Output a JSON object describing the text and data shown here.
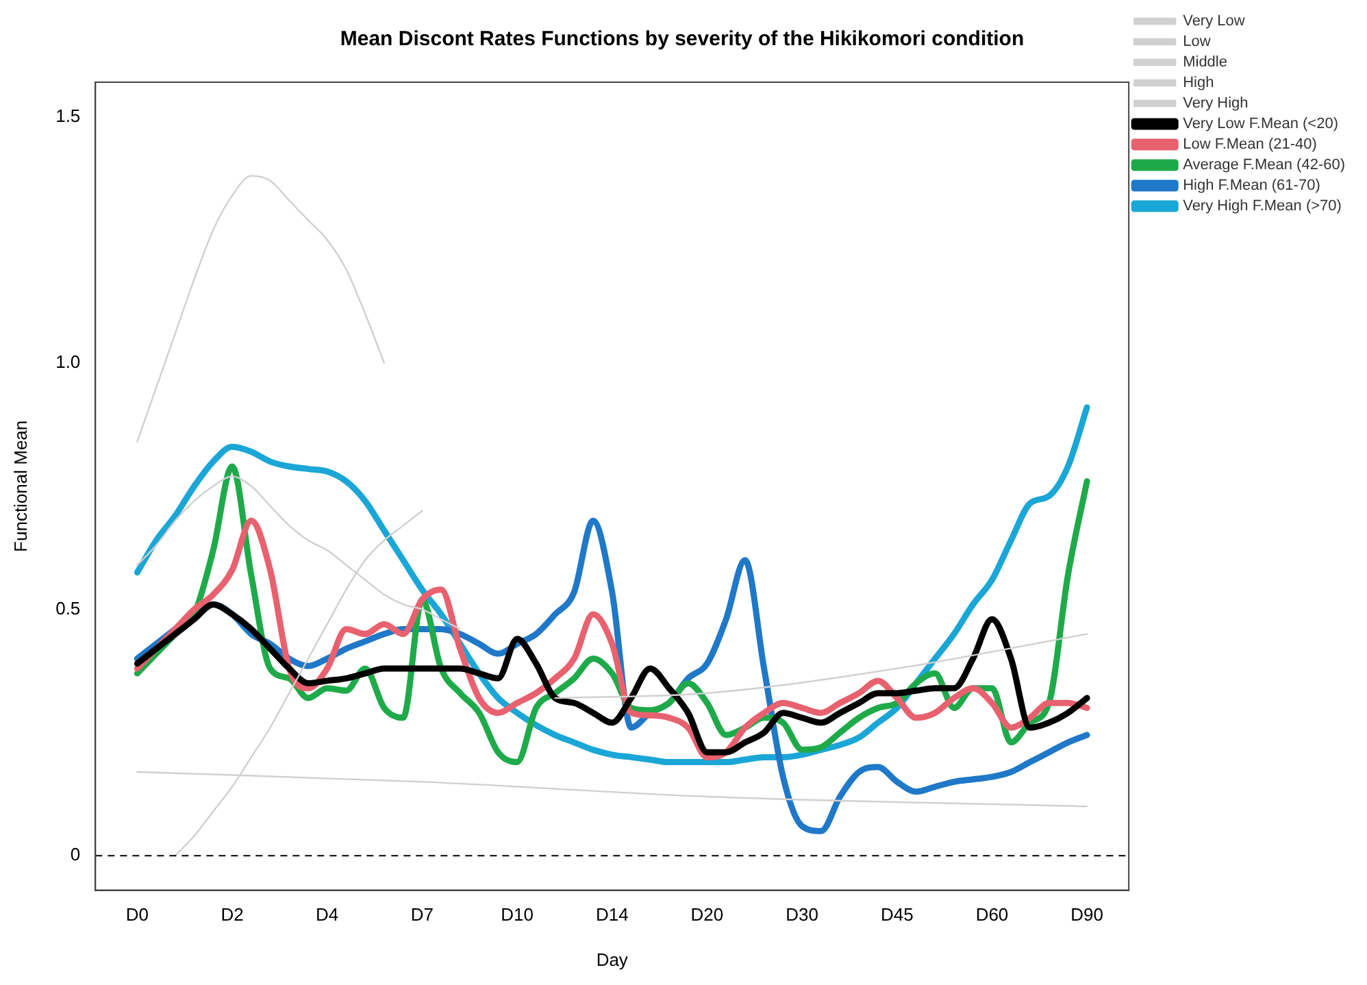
{
  "chart_data": {
    "type": "line",
    "title": "Mean Discont Rates Functions by severity of the Hikikomori condition",
    "xlabel": "Day",
    "ylabel": "Functional Mean",
    "categories": [
      "D0",
      null,
      null,
      null,
      null,
      "D2",
      null,
      null,
      null,
      null,
      "D4",
      null,
      null,
      null,
      null,
      "D7",
      null,
      null,
      null,
      null,
      "D10",
      null,
      null,
      null,
      null,
      "D14",
      null,
      null,
      null,
      null,
      "D20",
      null,
      null,
      null,
      null,
      "D30",
      null,
      null,
      null,
      null,
      "D45",
      null,
      null,
      null,
      null,
      "D60",
      null,
      null,
      null,
      null,
      "D90"
    ],
    "ylim": [
      -0.07,
      1.57
    ],
    "yticks": [
      0,
      {
        "value": 0.5,
        "label": "0.5"
      },
      {
        "value": 1,
        "label": "1.0"
      },
      {
        "value": 1.5,
        "label": "1.5"
      }
    ],
    "grid": false,
    "legend": "top right",
    "marker": "none",
    "ref_lines": [
      {
        "axis": "y",
        "value": 0,
        "label": null,
        "color": "#000000",
        "line_style": "dashed"
      }
    ],
    "series": [
      {
        "name": "Very Low",
        "color": "#d0d0d0",
        "values": [
          0.84,
          0.95,
          1.06,
          1.17,
          1.27,
          1.34,
          1.38,
          1.37,
          1.33,
          1.29,
          1.25,
          1.19,
          1.1,
          1.0,
          null,
          null,
          null,
          null,
          null,
          null,
          null,
          null,
          null,
          null,
          null,
          null,
          null,
          null,
          null,
          null,
          null,
          null,
          null,
          null,
          null,
          null,
          null,
          null,
          null,
          null,
          null,
          null,
          null,
          null,
          null,
          null,
          null,
          null,
          null,
          null,
          null
        ]
      },
      {
        "name": "Low",
        "color": "#d0d0d0",
        "values": [
          0.59,
          0.63,
          0.68,
          0.72,
          0.75,
          0.77,
          0.75,
          0.71,
          0.67,
          0.64,
          0.62,
          0.59,
          0.56,
          0.53,
          0.51,
          0.5,
          0.48,
          0.46,
          null,
          null,
          null,
          null,
          null,
          null,
          null,
          null,
          null,
          null,
          null,
          null,
          null,
          null,
          null,
          null,
          null,
          null,
          null,
          null,
          null,
          null,
          null,
          null,
          null,
          null,
          null,
          null,
          null,
          null,
          null,
          null,
          null
        ]
      },
      {
        "name": "Middle",
        "color": "#d0d0d0",
        "values": [
          null,
          null,
          0,
          0.04,
          0.09,
          0.14,
          0.2,
          0.26,
          0.33,
          0.4,
          0.47,
          0.54,
          0.6,
          0.64,
          0.67,
          0.7,
          null,
          null,
          null,
          null,
          null,
          null,
          null,
          null,
          null,
          null,
          null,
          null,
          null,
          null,
          null,
          null,
          null,
          null,
          null,
          null,
          null,
          null,
          null,
          null,
          null,
          null,
          null,
          null,
          null,
          null,
          null,
          null,
          null,
          null,
          null
        ]
      },
      {
        "name": "High",
        "color": "#d0d0d0",
        "values": [
          null,
          null,
          null,
          null,
          null,
          null,
          null,
          null,
          null,
          null,
          null,
          null,
          null,
          null,
          null,
          null,
          null,
          null,
          null,
          null,
          null,
          null,
          0.32,
          null,
          null,
          null,
          null,
          null,
          null,
          null,
          0.33,
          null,
          null,
          null,
          null,
          null,
          null,
          null,
          null,
          null,
          0.38,
          null,
          null,
          null,
          null,
          null,
          null,
          null,
          null,
          null,
          0.45
        ]
      },
      {
        "name": "Very High",
        "color": "#d0d0d0",
        "values": [
          0.17,
          null,
          null,
          null,
          null,
          null,
          null,
          null,
          null,
          null,
          null,
          null,
          null,
          null,
          null,
          0.15,
          null,
          null,
          null,
          null,
          null,
          null,
          null,
          null,
          null,
          null,
          null,
          null,
          null,
          null,
          0.12,
          null,
          null,
          null,
          null,
          null,
          null,
          null,
          null,
          null,
          null,
          null,
          null,
          null,
          null,
          null,
          null,
          null,
          null,
          null,
          0.1
        ]
      },
      {
        "name": "Very Low F.Mean (<20)",
        "color": "#000000",
        "values": [
          0.39,
          0.42,
          0.45,
          0.48,
          0.51,
          0.49,
          0.46,
          0.42,
          0.38,
          0.35,
          0.355,
          0.36,
          0.37,
          0.38,
          0.38,
          0.38,
          0.38,
          0.38,
          0.37,
          0.36,
          0.44,
          0.39,
          0.32,
          0.31,
          0.29,
          0.27,
          0.32,
          0.38,
          0.34,
          0.29,
          0.21,
          0.21,
          0.23,
          0.25,
          0.29,
          0.28,
          0.27,
          0.29,
          0.31,
          0.33,
          0.33,
          0.335,
          0.34,
          0.34,
          0.4,
          0.48,
          0.4,
          0.26,
          0.27,
          0.29,
          0.32
        ]
      },
      {
        "name": "Low F.Mean (21-40)",
        "color": "#e8616f",
        "values": [
          0.38,
          0.42,
          0.46,
          0.5,
          0.53,
          0.58,
          0.68,
          0.58,
          0.38,
          0.34,
          0.38,
          0.46,
          0.45,
          0.47,
          0.45,
          0.52,
          0.54,
          0.42,
          0.32,
          0.29,
          0.31,
          0.33,
          0.36,
          0.4,
          0.49,
          0.43,
          0.29,
          0.285,
          0.28,
          0.26,
          0.2,
          0.21,
          0.26,
          0.29,
          0.31,
          0.3,
          0.29,
          0.31,
          0.33,
          0.355,
          0.32,
          0.28,
          0.29,
          0.32,
          0.34,
          0.31,
          0.26,
          0.28,
          0.31,
          0.31,
          0.3
        ]
      },
      {
        "name": "Average F.Mean (42-60)",
        "color": "#1faa4a",
        "values": [
          0.37,
          0.41,
          0.45,
          0.49,
          0.62,
          0.79,
          0.57,
          0.38,
          0.36,
          0.32,
          0.34,
          0.335,
          0.38,
          0.3,
          0.28,
          0.52,
          0.38,
          0.33,
          0.29,
          0.21,
          0.19,
          0.3,
          0.33,
          0.36,
          0.4,
          0.37,
          0.3,
          0.295,
          0.31,
          0.35,
          0.31,
          0.245,
          0.26,
          0.28,
          0.27,
          0.215,
          0.22,
          0.25,
          0.28,
          0.3,
          0.31,
          0.35,
          0.37,
          0.3,
          0.34,
          0.34,
          0.23,
          0.27,
          0.31,
          0.57,
          0.76
        ]
      },
      {
        "name": "High F.Mean (61-70)",
        "color": "#1f78c8",
        "values": [
          0.4,
          0.43,
          0.46,
          0.49,
          0.51,
          0.49,
          0.45,
          0.43,
          0.4,
          0.385,
          0.4,
          0.42,
          0.435,
          0.45,
          0.46,
          0.46,
          0.46,
          0.45,
          0.43,
          0.41,
          0.43,
          0.45,
          0.49,
          0.535,
          0.68,
          0.535,
          0.26,
          0.29,
          0.31,
          0.36,
          0.39,
          0.48,
          0.6,
          0.38,
          0.16,
          0.06,
          0.05,
          0.12,
          0.17,
          0.18,
          0.15,
          0.13,
          0.14,
          0.15,
          0.155,
          0.16,
          0.17,
          0.19,
          0.21,
          0.23,
          0.245
        ]
      },
      {
        "name": "Very High F.Mean (>70)",
        "color": "#1aa6d6",
        "values": [
          0.575,
          0.64,
          0.69,
          0.75,
          0.8,
          0.83,
          0.82,
          0.8,
          0.79,
          0.785,
          0.78,
          0.76,
          0.72,
          0.66,
          0.6,
          0.54,
          0.49,
          0.43,
          0.37,
          0.32,
          0.29,
          0.265,
          0.245,
          0.23,
          0.215,
          0.205,
          0.2,
          0.195,
          0.19,
          0.19,
          0.19,
          0.19,
          0.195,
          0.2,
          0.2,
          0.205,
          0.215,
          0.225,
          0.24,
          0.27,
          0.3,
          0.35,
          0.4,
          0.45,
          0.51,
          0.56,
          0.64,
          0.715,
          0.73,
          0.79,
          0.91
        ]
      }
    ]
  }
}
